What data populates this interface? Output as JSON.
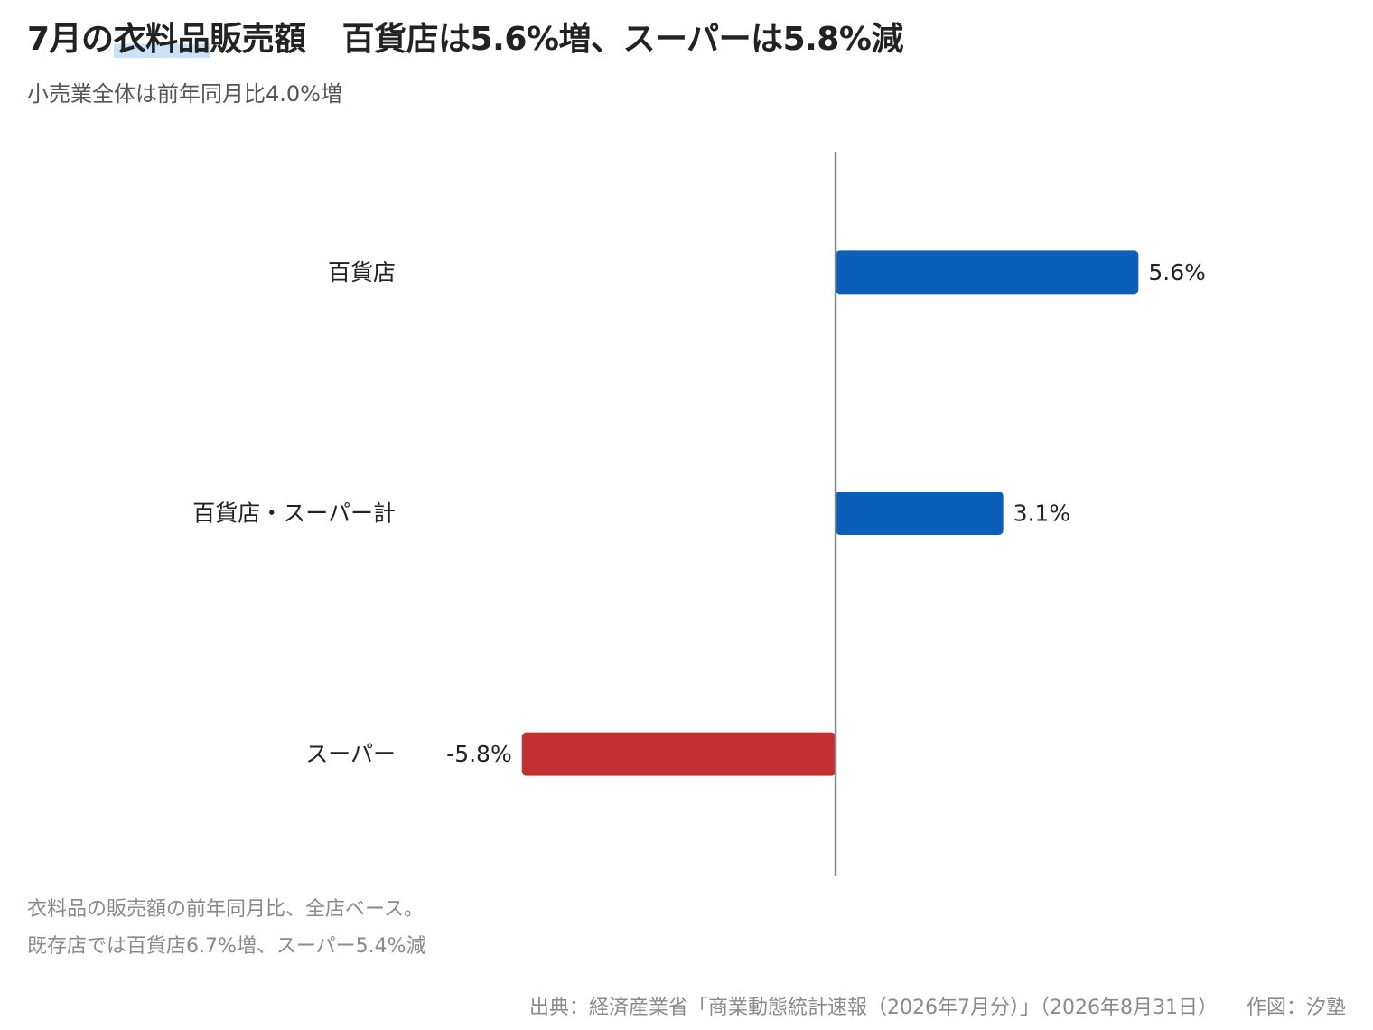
{
  "title": {
    "prefix": "7月の",
    "highlight": "衣料品",
    "middle": "販売額",
    "rest": "百貨店は5.6%増、スーパーは5.8%減"
  },
  "subtitle": "小売業全体は前年同月比4.0%増",
  "colors": {
    "positive": "#0b5fb8",
    "negative": "#c33032",
    "axis": "#8c8c8c",
    "highlight": "#c9e2f7"
  },
  "chart_data": {
    "type": "bar",
    "orientation": "horizontal",
    "categories": [
      "百貨店",
      "百貨店・スーパー計",
      "スーパー"
    ],
    "values": [
      5.6,
      3.1,
      -5.8
    ],
    "value_labels": [
      "5.6%",
      "3.1%",
      "-5.8%"
    ],
    "title": "7月の衣料品販売額　百貨店は5.6%増、スーパーは5.8%減",
    "xlabel": "",
    "ylabel": "",
    "xlim": [
      -8.1,
      8.6
    ],
    "grid": false,
    "legend": "none"
  },
  "notes": [
    "衣料品の販売額の前年同月比、全店ベース。",
    "既存店では百貨店6.7%増、スーパー5.4%減"
  ],
  "source": {
    "citation": "出典：経済産業省「商業動態統計速報（2026年7月分）」（2026年8月31日）",
    "credit": "作図：汐塾"
  }
}
